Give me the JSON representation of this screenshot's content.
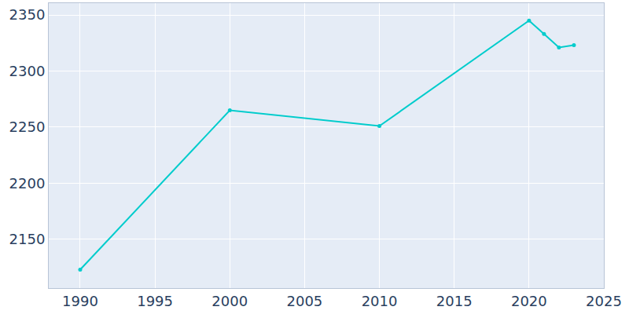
{
  "chart_data": {
    "type": "line",
    "x": [
      1990,
      2000,
      2010,
      2020,
      2021,
      2022,
      2023
    ],
    "values": [
      2123,
      2265,
      2251,
      2345,
      2333,
      2321,
      2323
    ],
    "color": "#00cccc",
    "marker": "circle",
    "xlim": [
      1987.9,
      2025
    ],
    "xticks": [
      1990,
      1995,
      2000,
      2005,
      2010,
      2015,
      2020,
      2025
    ],
    "ylim": [
      2106.6,
      2360.5
    ],
    "yticks": [
      2150,
      2200,
      2250,
      2300,
      2350
    ],
    "grid": true
  }
}
